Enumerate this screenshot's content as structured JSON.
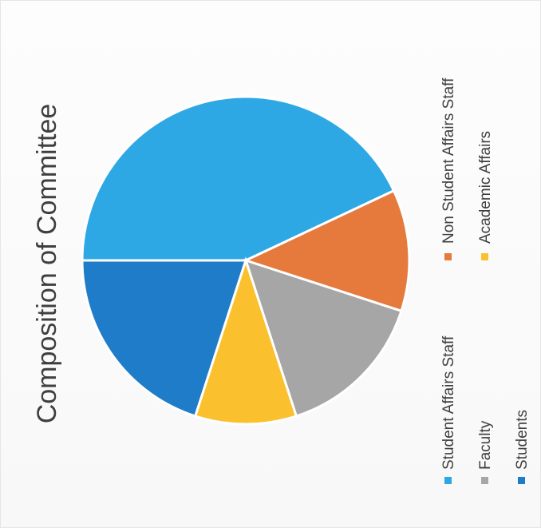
{
  "chart_data": {
    "type": "pie",
    "title": "Composition of Committee",
    "categories": [
      "Student Affairs Staff",
      "Non Student Affairs Staff",
      "Faculty",
      "Academic Affairs",
      "Students"
    ],
    "values": [
      43,
      12,
      15,
      10,
      20
    ],
    "colors": [
      "#2ea8e4",
      "#e67a3d",
      "#a6a6a6",
      "#fbc02d",
      "#1f7cc8"
    ],
    "legend_position": "right",
    "orientation": "rotated 90° counter-clockwise"
  }
}
